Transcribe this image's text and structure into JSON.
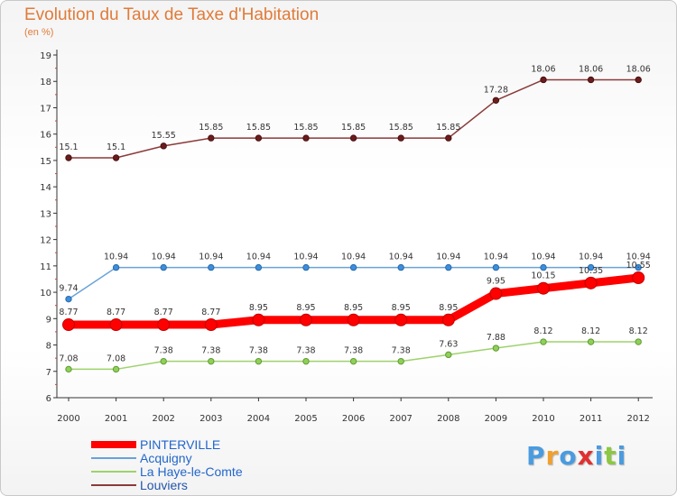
{
  "chart_data": {
    "type": "line",
    "title": "Evolution du Taux de Taxe d'Habitation",
    "unit_label": "(en %)",
    "x": [
      "2000",
      "2001",
      "2002",
      "2003",
      "2004",
      "2005",
      "2006",
      "2007",
      "2008",
      "2009",
      "2010",
      "2011",
      "2012"
    ],
    "y_ticks": [
      "6",
      "7",
      "8",
      "9",
      "10",
      "11",
      "12",
      "13",
      "14",
      "15",
      "16",
      "17",
      "18",
      "19"
    ],
    "ylim": [
      6,
      19
    ],
    "grid": false,
    "legend_position": "bottom-left",
    "series": [
      {
        "name": "PINTERVILLE",
        "color": "#ff0000",
        "values": [
          8.77,
          8.77,
          8.77,
          8.77,
          8.95,
          8.95,
          8.95,
          8.95,
          8.95,
          9.95,
          10.15,
          10.35,
          10.55
        ],
        "labels": [
          "8.77",
          "8.77",
          "8.77",
          "8.77",
          "8.95",
          "8.95",
          "8.95",
          "8.95",
          "8.95",
          "9.95",
          "10.15",
          "10.35",
          "10.55"
        ]
      },
      {
        "name": "Acquigny",
        "color": "#6aa2d8",
        "values": [
          9.74,
          10.94,
          10.94,
          10.94,
          10.94,
          10.94,
          10.94,
          10.94,
          10.94,
          10.94,
          10.94,
          10.94,
          10.94
        ],
        "labels": [
          "9.74",
          "10.94",
          "10.94",
          "10.94",
          "10.94",
          "10.94",
          "10.94",
          "10.94",
          "10.94",
          "10.94",
          "10.94",
          "10.94",
          "10.94"
        ]
      },
      {
        "name": "La Haye-le-Comte",
        "color": "#9ed26b",
        "values": [
          7.08,
          7.08,
          7.38,
          7.38,
          7.38,
          7.38,
          7.38,
          7.38,
          7.63,
          7.88,
          8.12,
          8.12,
          8.12
        ],
        "labels": [
          "7.08",
          "7.08",
          "7.38",
          "7.38",
          "7.38",
          "7.38",
          "7.38",
          "7.38",
          "7.63",
          "7.88",
          "8.12",
          "8.12",
          "8.12"
        ]
      },
      {
        "name": "Louviers",
        "color": "#8b3a3a",
        "values": [
          15.1,
          15.1,
          15.55,
          15.85,
          15.85,
          15.85,
          15.85,
          15.85,
          15.85,
          17.28,
          18.06,
          18.06,
          18.06
        ],
        "labels": [
          "15.1",
          "15.1",
          "15.55",
          "15.85",
          "15.85",
          "15.85",
          "15.85",
          "15.85",
          "15.85",
          "17.28",
          "18.06",
          "18.06",
          "18.06"
        ]
      }
    ]
  },
  "logo": {
    "letters": [
      "P",
      "r",
      "o",
      "x",
      "i",
      "t",
      "i"
    ],
    "colors": [
      "#4a9be0",
      "#f0a030",
      "#4a9be0",
      "#e03030",
      "#4a9be0",
      "#8cc840",
      "#4a9be0"
    ]
  }
}
